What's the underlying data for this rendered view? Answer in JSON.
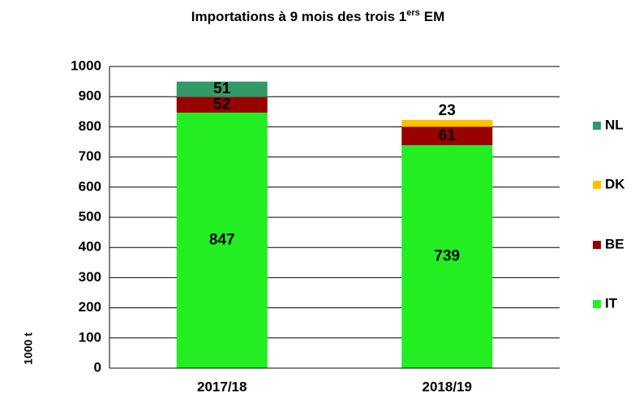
{
  "chart_data": {
    "type": "stacked_bar",
    "title": "Importations à 9 mois des trois 1",
    "title_superscript": "ers",
    "title_end": "EM",
    "y_label": "1000 t",
    "categories": [
      "2017/18",
      "2018/19"
    ],
    "series": [
      {
        "name": "IT",
        "color": "#22ee22",
        "label_color": "#000000",
        "values": [
          847,
          739
        ]
      },
      {
        "name": "BE",
        "color": "#990000",
        "label_color": "#ffffff",
        "values": [
          52,
          61
        ]
      },
      {
        "name": "DK",
        "color": "#ffc000",
        "label_color": "#000000",
        "values": [
          null,
          23
        ]
      },
      {
        "name": "NL",
        "color": "#339966",
        "label_color": "#000000",
        "values": [
          51,
          null
        ]
      }
    ],
    "ylim": [
      0,
      1000
    ],
    "yticks": [
      0,
      100,
      200,
      300,
      400,
      500,
      600,
      700,
      800,
      900,
      1000
    ],
    "grid": true,
    "legend": "right"
  }
}
